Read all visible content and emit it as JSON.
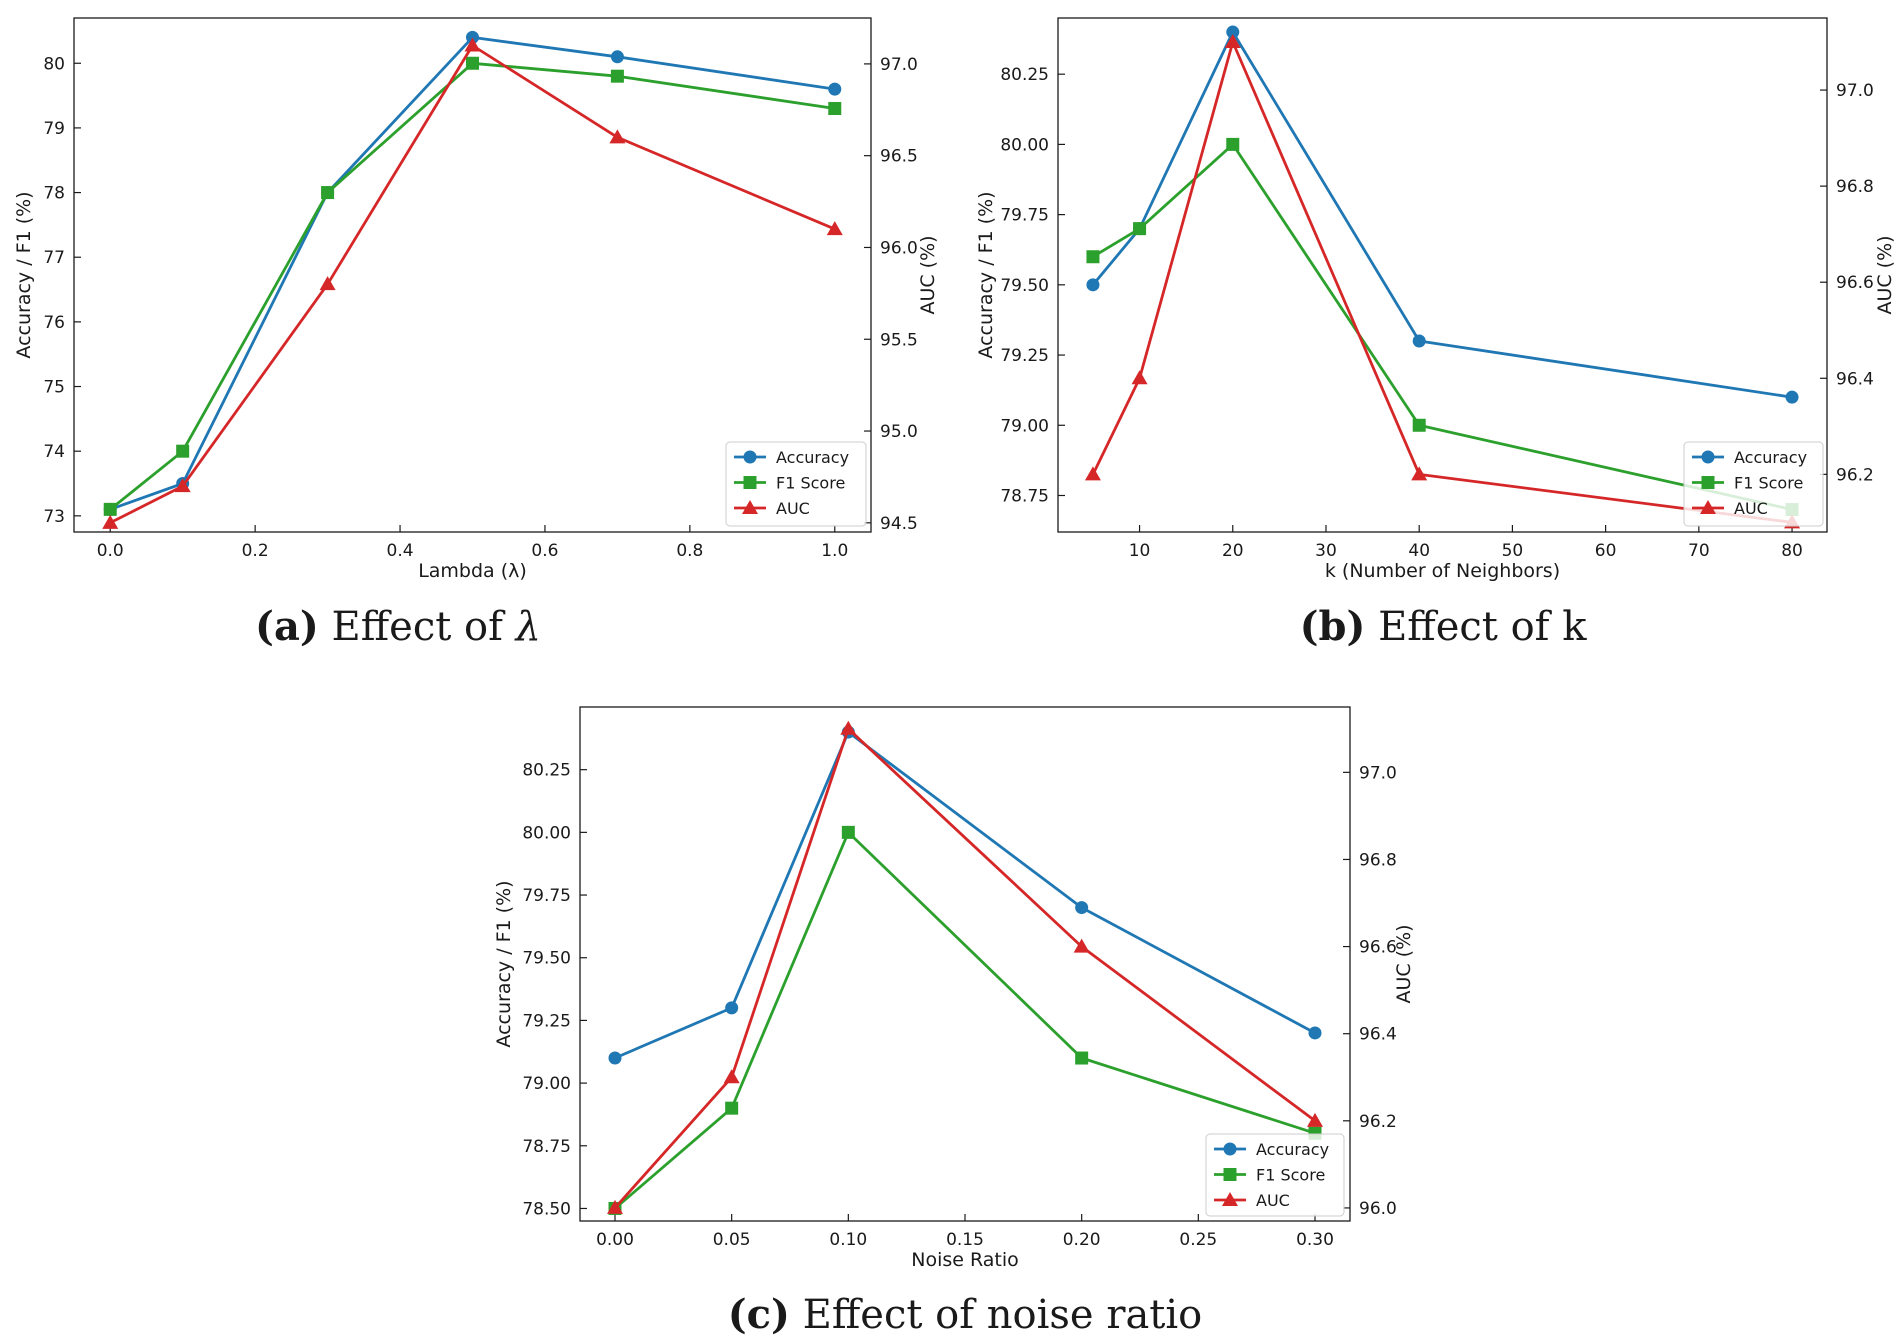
{
  "chart_data": [
    {
      "id": "a",
      "type": "line",
      "caption_label": "(a)",
      "caption_text": "Effect of ",
      "caption_symbol": "λ",
      "xlabel": "Lambda (λ)",
      "ylabel": "Accuracy / F1 (%)",
      "y2label": "AUC (%)",
      "xlim": [
        -0.05,
        1.05
      ],
      "ylim": [
        72.75,
        80.7
      ],
      "y2lim": [
        94.45,
        97.25
      ],
      "xticks": [
        0.0,
        0.2,
        0.4,
        0.6,
        0.8,
        1.0
      ],
      "xtick_labels": [
        "0.0",
        "0.2",
        "0.4",
        "0.6",
        "0.8",
        "1.0"
      ],
      "yticks": [
        73,
        74,
        75,
        76,
        77,
        78,
        79,
        80
      ],
      "ytick_labels": [
        "73",
        "74",
        "75",
        "76",
        "77",
        "78",
        "79",
        "80"
      ],
      "y2ticks": [
        94.5,
        95.0,
        95.5,
        96.0,
        96.5,
        97.0
      ],
      "y2tick_labels": [
        "94.5",
        "95.0",
        "95.5",
        "96.0",
        "96.5",
        "97.0"
      ],
      "x": [
        0.0,
        0.1,
        0.3,
        0.5,
        0.7,
        1.0
      ],
      "series": [
        {
          "name": "Accuracy",
          "axis": "left",
          "marker": "circle",
          "color": "#1f77b4",
          "values": [
            73.1,
            73.5,
            78.0,
            80.4,
            80.1,
            79.6
          ]
        },
        {
          "name": "F1 Score",
          "axis": "left",
          "marker": "square",
          "color": "#2ca02c",
          "values": [
            73.1,
            74.0,
            78.0,
            80.0,
            79.8,
            79.3
          ]
        },
        {
          "name": "AUC",
          "axis": "right",
          "marker": "triangle",
          "color": "#d62728",
          "values": [
            94.5,
            94.7,
            95.8,
            97.1,
            96.6,
            96.1
          ]
        }
      ],
      "legend_position": "lower-right"
    },
    {
      "id": "b",
      "type": "line",
      "caption_label": "(b)",
      "caption_text": "Effect of k",
      "caption_symbol": "",
      "xlabel": "k (Number of Neighbors)",
      "ylabel": "Accuracy / F1 (%)",
      "y2label": "AUC (%)",
      "xlim": [
        1.25,
        83.75
      ],
      "ylim": [
        78.62,
        80.45
      ],
      "y2lim": [
        96.08,
        97.15
      ],
      "xticks": [
        10,
        20,
        30,
        40,
        50,
        60,
        70,
        80
      ],
      "xtick_labels": [
        "10",
        "20",
        "30",
        "40",
        "50",
        "60",
        "70",
        "80"
      ],
      "yticks": [
        78.75,
        79.0,
        79.25,
        79.5,
        79.75,
        80.0,
        80.25
      ],
      "ytick_labels": [
        "78.75",
        "79.00",
        "79.25",
        "79.50",
        "79.75",
        "80.00",
        "80.25"
      ],
      "y2ticks": [
        96.2,
        96.4,
        96.6,
        96.8,
        97.0
      ],
      "y2tick_labels": [
        "96.2",
        "96.4",
        "96.6",
        "96.8",
        "97.0"
      ],
      "x": [
        5,
        10,
        20,
        40,
        80
      ],
      "series": [
        {
          "name": "Accuracy",
          "axis": "left",
          "marker": "circle",
          "color": "#1f77b4",
          "values": [
            79.5,
            79.7,
            80.4,
            79.3,
            79.1
          ]
        },
        {
          "name": "F1 Score",
          "axis": "left",
          "marker": "square",
          "color": "#2ca02c",
          "values": [
            79.6,
            79.7,
            80.0,
            79.0,
            78.7
          ]
        },
        {
          "name": "AUC",
          "axis": "right",
          "marker": "triangle",
          "color": "#d62728",
          "values": [
            96.2,
            96.4,
            97.1,
            96.2,
            96.1
          ]
        }
      ],
      "legend_position": "lower-right"
    },
    {
      "id": "c",
      "type": "line",
      "caption_label": "(c)",
      "caption_text": "Effect of noise ratio",
      "caption_symbol": "",
      "xlabel": "Noise Ratio",
      "ylabel": "Accuracy / F1 (%)",
      "y2label": "AUC (%)",
      "xlim": [
        -0.015,
        0.315
      ],
      "ylim": [
        78.45,
        80.5
      ],
      "y2lim": [
        95.97,
        97.15
      ],
      "xticks": [
        0.0,
        0.05,
        0.1,
        0.15,
        0.2,
        0.25,
        0.3
      ],
      "xtick_labels": [
        "0.00",
        "0.05",
        "0.10",
        "0.15",
        "0.20",
        "0.25",
        "0.30"
      ],
      "yticks": [
        78.5,
        78.75,
        79.0,
        79.25,
        79.5,
        79.75,
        80.0,
        80.25
      ],
      "ytick_labels": [
        "78.50",
        "78.75",
        "79.00",
        "79.25",
        "79.50",
        "79.75",
        "80.00",
        "80.25"
      ],
      "y2ticks": [
        96.0,
        96.2,
        96.4,
        96.6,
        96.8,
        97.0
      ],
      "y2tick_labels": [
        "96.0",
        "96.2",
        "96.4",
        "96.6",
        "96.8",
        "97.0"
      ],
      "x": [
        0.0,
        0.05,
        0.1,
        0.2,
        0.3
      ],
      "series": [
        {
          "name": "Accuracy",
          "axis": "left",
          "marker": "circle",
          "color": "#1f77b4",
          "values": [
            79.1,
            79.3,
            80.4,
            79.7,
            79.2
          ]
        },
        {
          "name": "F1 Score",
          "axis": "left",
          "marker": "square",
          "color": "#2ca02c",
          "values": [
            78.5,
            78.9,
            80.0,
            79.1,
            78.8
          ]
        },
        {
          "name": "AUC",
          "axis": "right",
          "marker": "triangle",
          "color": "#d62728",
          "values": [
            96.0,
            96.3,
            97.1,
            96.6,
            96.2
          ]
        }
      ],
      "legend_position": "lower-right"
    }
  ]
}
